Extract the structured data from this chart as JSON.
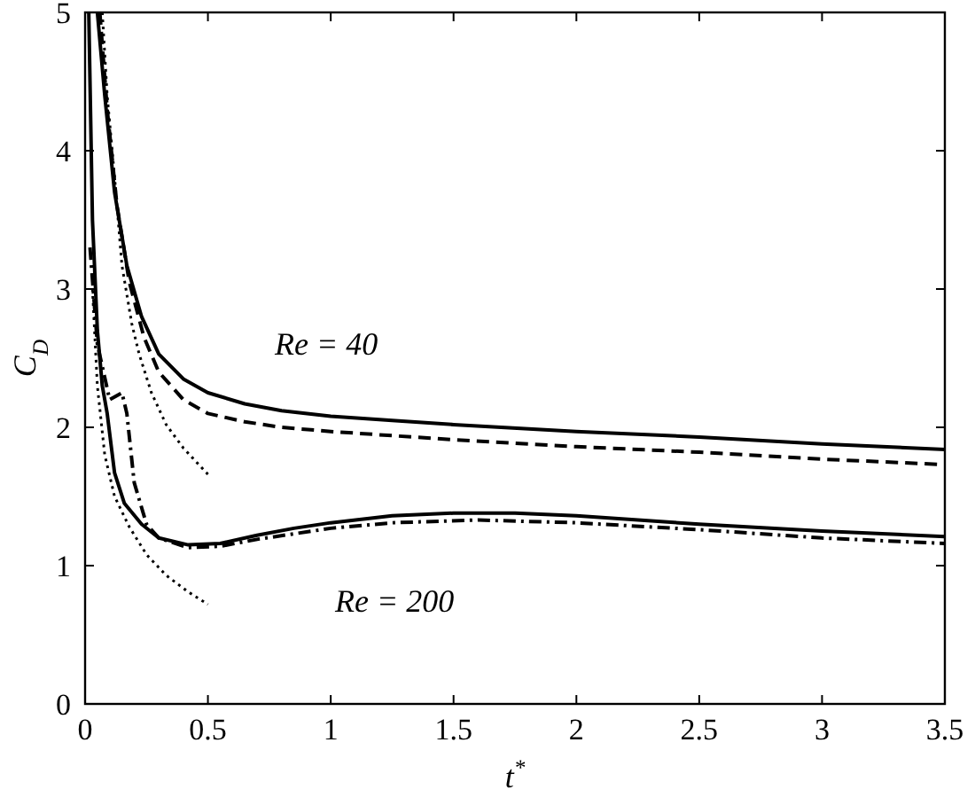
{
  "chart_data": {
    "type": "line",
    "xlabel": "t$^{*}$",
    "ylabel": "C$_{D}$",
    "xlim": [
      0,
      3.5
    ],
    "ylim": [
      0,
      5
    ],
    "xticks": [
      0,
      0.5,
      1,
      1.5,
      2,
      2.5,
      3,
      3.5
    ],
    "yticks": [
      0,
      1,
      2,
      3,
      4,
      5
    ],
    "grid": false,
    "marker": "none",
    "annotations": [
      "Re = 40",
      "Re = 200"
    ],
    "series": [
      {
        "color": "#000000",
        "line_style": "solid",
        "x": [
          0.05,
          0.08,
          0.12,
          0.17,
          0.23,
          0.3,
          0.4,
          0.5,
          0.65,
          0.8,
          1,
          1.25,
          1.5,
          2,
          2.5,
          3,
          3.5
        ],
        "values": [
          5,
          4.4,
          3.7,
          3.17,
          2.8,
          2.53,
          2.35,
          2.25,
          2.17,
          2.12,
          2.08,
          2.05,
          2.02,
          1.97,
          1.93,
          1.88,
          1.84
        ]
      },
      {
        "color": "#000000",
        "line_style": "dashed",
        "x": [
          0.06,
          0.09,
          0.13,
          0.18,
          0.24,
          0.3,
          0.4,
          0.5,
          0.65,
          0.8,
          1,
          1.25,
          1.5,
          2,
          2.5,
          3,
          3.5
        ],
        "values": [
          5,
          4.3,
          3.6,
          3.05,
          2.65,
          2.4,
          2.2,
          2.1,
          2.04,
          2,
          1.97,
          1.94,
          1.91,
          1.86,
          1.82,
          1.77,
          1.73
        ]
      },
      {
        "color": "#000000",
        "line_style": "dotted",
        "x": [
          0.07,
          0.09,
          0.12,
          0.15,
          0.19,
          0.22,
          0.27,
          0.33,
          0.4,
          0.5
        ],
        "values": [
          5,
          4.4,
          3.81,
          3.17,
          2.75,
          2.53,
          2.25,
          2.02,
          1.85,
          1.66
        ]
      },
      {
        "color": "#000000",
        "line_style": "solid",
        "x": [
          0.015,
          0.03,
          0.05,
          0.07,
          0.09,
          0.12,
          0.16,
          0.23,
          0.3,
          0.42,
          0.55,
          0.7,
          0.85,
          1,
          1.25,
          1.5,
          1.75,
          2,
          2.5,
          3,
          3.5
        ],
        "values": [
          5,
          3.5,
          2.7,
          2.3,
          2.1,
          1.67,
          1.45,
          1.3,
          1.2,
          1.15,
          1.16,
          1.22,
          1.27,
          1.31,
          1.36,
          1.38,
          1.38,
          1.36,
          1.3,
          1.25,
          1.21
        ]
      },
      {
        "color": "#000000",
        "line_style": "dashdot",
        "x": [
          0.02,
          0.05,
          0.1,
          0.15,
          0.17,
          0.2,
          0.25,
          0.3,
          0.42,
          0.55,
          0.7,
          0.85,
          1,
          1.25,
          1.6,
          2,
          2.5,
          3,
          3.5
        ],
        "values": [
          3.3,
          2.6,
          2.2,
          2.25,
          2.1,
          1.6,
          1.3,
          1.2,
          1.13,
          1.14,
          1.19,
          1.23,
          1.27,
          1.31,
          1.33,
          1.31,
          1.26,
          1.2,
          1.16
        ]
      },
      {
        "color": "#000000",
        "line_style": "dotted",
        "x": [
          0.03,
          0.05,
          0.08,
          0.12,
          0.18,
          0.25,
          0.33,
          0.42,
          0.5
        ],
        "values": [
          3,
          2.3,
          1.8,
          1.5,
          1.28,
          1.08,
          0.93,
          0.81,
          0.72
        ]
      }
    ]
  }
}
